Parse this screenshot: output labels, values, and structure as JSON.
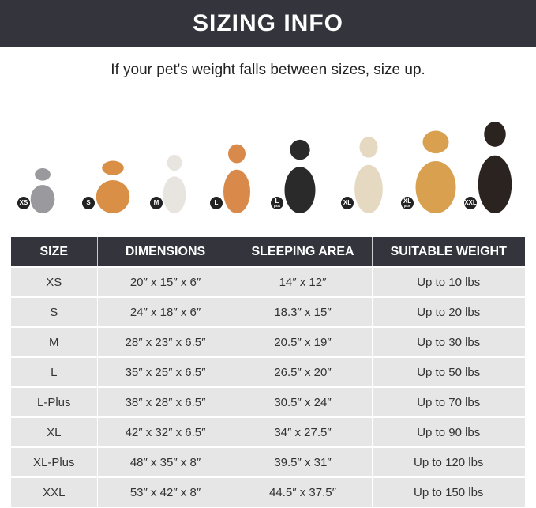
{
  "banner": {
    "title": "SIZING INFO"
  },
  "subtitle": "If your pet's weight falls between sizes, size up.",
  "pets": [
    {
      "badge": "XS",
      "plus": "",
      "animal": "grey cat",
      "color": "#9a9a9e"
    },
    {
      "badge": "S",
      "plus": "",
      "animal": "pomeranian",
      "color": "#d98f45"
    },
    {
      "badge": "M",
      "plus": "",
      "animal": "french bulldog",
      "color": "#e8e4e0"
    },
    {
      "badge": "L",
      "plus": "",
      "animal": "shiba inu",
      "color": "#d98a4a"
    },
    {
      "badge": "L",
      "plus": "plus",
      "animal": "border collie",
      "color": "#2a2a2a"
    },
    {
      "badge": "XL",
      "plus": "",
      "animal": "labrador",
      "color": "#e6d9c2"
    },
    {
      "badge": "XL",
      "plus": "plus",
      "animal": "golden retriever",
      "color": "#d9a050"
    },
    {
      "badge": "XXL",
      "plus": "",
      "animal": "doberman",
      "color": "#2b2320"
    }
  ],
  "table": {
    "headers": [
      "SIZE",
      "DIMENSIONS",
      "SLEEPING AREA",
      "SUITABLE WEIGHT"
    ],
    "rows": [
      [
        "XS",
        "20″ x 15″ x 6″",
        "14″ x 12″",
        "Up to 10 lbs"
      ],
      [
        "S",
        "24″ x 18″ x 6″",
        "18.3″ x 15″",
        "Up to 20 lbs"
      ],
      [
        "M",
        "28″ x 23″ x 6.5″",
        "20.5″ x 19″",
        "Up to 30 lbs"
      ],
      [
        "L",
        "35″ x 25″ x 6.5″",
        "26.5″ x 20″",
        "Up to 50 lbs"
      ],
      [
        "L-Plus",
        "38″ x 28″ x 6.5″",
        "30.5″ x 24″",
        "Up to 70 lbs"
      ],
      [
        "XL",
        "42″ x 32″ x 6.5″",
        "34″ x 27.5″",
        "Up to 90 lbs"
      ],
      [
        "XL-Plus",
        "48″ x 35″ x 8″",
        "39.5″ x 31″",
        "Up to 120 lbs"
      ],
      [
        "XXL",
        "53″ x 42″ x 8″",
        "44.5″ x 37.5″",
        "Up to 150 lbs"
      ]
    ]
  }
}
